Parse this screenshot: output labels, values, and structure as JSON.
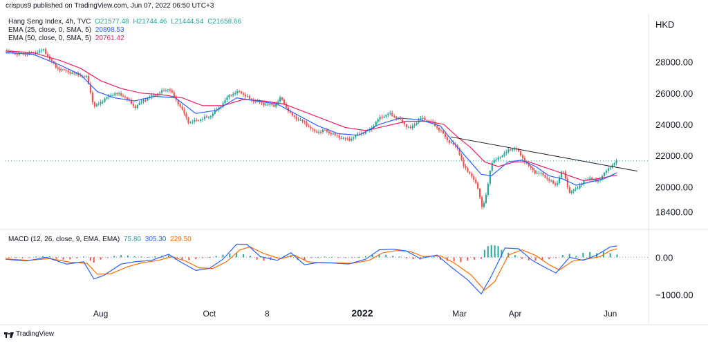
{
  "header": {
    "text": "crispus9 published on TradingView.com, Jun 07, 2022 06:50 UTC+3"
  },
  "currency": "HKD",
  "watermark_text": "TradingView",
  "legend": {
    "main": {
      "label": "Hang Seng Index, 4h, TVC",
      "o": "O21577.48",
      "h": "H21744.46",
      "l": "L21444.54",
      "c": "C21658.66",
      "color": "#26a69a"
    },
    "ema25": {
      "label": "EMA (25, close, 0, SMA, 5)",
      "value": "20898.53",
      "color": "#2962ff"
    },
    "ema50": {
      "label": "EMA (50, close, 0, SMA, 5)",
      "value": "20761.42",
      "color": "#e91e63"
    },
    "macd": {
      "label": "MACD (12, 26, close, 9, EMA, EMA)",
      "hist": "75.80",
      "macd": "305.30",
      "signal": "229.50",
      "hist_color": "#26a69a",
      "macd_color": "#2962ff",
      "signal_color": "#ff6d00"
    }
  },
  "chart_data": [
    {
      "type": "candlestick",
      "title": "Hang Seng Index, 4h, TVC",
      "x_tick_labels": [
        "Aug",
        "Oct",
        "8",
        "2022",
        "Mar",
        "Apr",
        "Jun"
      ],
      "y_tick_labels": [
        "28000.00",
        "26000.00",
        "24000.00",
        "22000.00",
        "20000.00",
        "18400.00"
      ],
      "ylim": [
        17800,
        30200
      ],
      "last_price_line": 21658.66,
      "colors": {
        "up": "#26a69a",
        "down": "#ef5350",
        "ema25": "#2962ff",
        "ema50": "#e91e63",
        "trendline": "#131722"
      },
      "close_path": [
        [
          0,
          28700
        ],
        [
          20,
          28500
        ],
        [
          40,
          28550
        ],
        [
          55,
          28800
        ],
        [
          75,
          27600
        ],
        [
          90,
          27400
        ],
        [
          105,
          27200
        ],
        [
          120,
          27000
        ],
        [
          130,
          25100
        ],
        [
          145,
          25600
        ],
        [
          160,
          26000
        ],
        [
          175,
          25800
        ],
        [
          190,
          25100
        ],
        [
          205,
          25600
        ],
        [
          220,
          25900
        ],
        [
          240,
          26300
        ],
        [
          255,
          25300
        ],
        [
          270,
          24100
        ],
        [
          285,
          24300
        ],
        [
          300,
          24500
        ],
        [
          315,
          25100
        ],
        [
          330,
          25900
        ],
        [
          345,
          26100
        ],
        [
          360,
          25600
        ],
        [
          380,
          25300
        ],
        [
          395,
          25200
        ],
        [
          405,
          25700
        ],
        [
          420,
          24600
        ],
        [
          440,
          24100
        ],
        [
          455,
          23500
        ],
        [
          470,
          23600
        ],
        [
          490,
          23200
        ],
        [
          505,
          23000
        ],
        [
          520,
          23400
        ],
        [
          535,
          23600
        ],
        [
          550,
          24400
        ],
        [
          565,
          24700
        ],
        [
          580,
          24300
        ],
        [
          595,
          23700
        ],
        [
          610,
          24400
        ],
        [
          625,
          24200
        ],
        [
          640,
          23600
        ],
        [
          650,
          23000
        ],
        [
          665,
          22500
        ],
        [
          675,
          21200
        ],
        [
          685,
          20800
        ],
        [
          695,
          19900
        ],
        [
          702,
          18600
        ],
        [
          708,
          19600
        ],
        [
          715,
          21600
        ],
        [
          725,
          21800
        ],
        [
          735,
          22200
        ],
        [
          750,
          22500
        ],
        [
          760,
          21900
        ],
        [
          770,
          21300
        ],
        [
          780,
          20900
        ],
        [
          790,
          20800
        ],
        [
          800,
          20400
        ],
        [
          810,
          20100
        ],
        [
          820,
          21100
        ],
        [
          830,
          19600
        ],
        [
          840,
          19900
        ],
        [
          850,
          20300
        ],
        [
          860,
          20600
        ],
        [
          870,
          20300
        ],
        [
          880,
          20800
        ],
        [
          890,
          21300
        ],
        [
          900,
          21660
        ]
      ],
      "ema25_path": [
        [
          0,
          28600
        ],
        [
          40,
          28500
        ],
        [
          80,
          27800
        ],
        [
          110,
          27200
        ],
        [
          135,
          26100
        ],
        [
          160,
          25700
        ],
        [
          190,
          25500
        ],
        [
          220,
          25800
        ],
        [
          250,
          25700
        ],
        [
          280,
          24700
        ],
        [
          310,
          24900
        ],
        [
          340,
          25700
        ],
        [
          370,
          25500
        ],
        [
          400,
          25300
        ],
        [
          430,
          24600
        ],
        [
          460,
          23900
        ],
        [
          490,
          23400
        ],
        [
          520,
          23300
        ],
        [
          550,
          24000
        ],
        [
          580,
          24400
        ],
        [
          610,
          24300
        ],
        [
          640,
          23900
        ],
        [
          660,
          22800
        ],
        [
          680,
          21800
        ],
        [
          700,
          20800
        ],
        [
          715,
          20700
        ],
        [
          740,
          21600
        ],
        [
          760,
          21700
        ],
        [
          780,
          21300
        ],
        [
          800,
          20700
        ],
        [
          820,
          20500
        ],
        [
          840,
          20100
        ],
        [
          860,
          20300
        ],
        [
          880,
          20500
        ],
        [
          900,
          20900
        ]
      ],
      "ema50_path": [
        [
          0,
          28700
        ],
        [
          40,
          28600
        ],
        [
          80,
          28100
        ],
        [
          110,
          27600
        ],
        [
          140,
          26800
        ],
        [
          170,
          26300
        ],
        [
          200,
          26000
        ],
        [
          230,
          25900
        ],
        [
          260,
          25700
        ],
        [
          290,
          25200
        ],
        [
          320,
          25200
        ],
        [
          350,
          25600
        ],
        [
          380,
          25500
        ],
        [
          410,
          25300
        ],
        [
          440,
          24800
        ],
        [
          470,
          24300
        ],
        [
          500,
          23800
        ],
        [
          530,
          23600
        ],
        [
          560,
          23900
        ],
        [
          590,
          24200
        ],
        [
          620,
          24200
        ],
        [
          645,
          24000
        ],
        [
          665,
          23200
        ],
        [
          685,
          22500
        ],
        [
          705,
          21600
        ],
        [
          725,
          21300
        ],
        [
          750,
          21600
        ],
        [
          770,
          21600
        ],
        [
          790,
          21300
        ],
        [
          810,
          21000
        ],
        [
          830,
          20700
        ],
        [
          850,
          20400
        ],
        [
          870,
          20500
        ],
        [
          900,
          20760
        ]
      ],
      "trendline": [
        [
          655,
          23200
        ],
        [
          930,
          21000
        ]
      ]
    },
    {
      "type": "line",
      "title": "MACD (12, 26, close, 9, EMA, EMA)",
      "y_tick_labels": [
        "0.00",
        "−1000.00"
      ],
      "ylim": [
        -1250,
        600
      ],
      "macd_path": [
        [
          0,
          -50
        ],
        [
          30,
          -100
        ],
        [
          60,
          0
        ],
        [
          90,
          -180
        ],
        [
          115,
          -120
        ],
        [
          130,
          -580
        ],
        [
          145,
          -480
        ],
        [
          170,
          -180
        ],
        [
          190,
          -120
        ],
        [
          215,
          -80
        ],
        [
          240,
          80
        ],
        [
          260,
          -150
        ],
        [
          280,
          -350
        ],
        [
          300,
          -300
        ],
        [
          320,
          -50
        ],
        [
          340,
          350
        ],
        [
          355,
          350
        ],
        [
          375,
          20
        ],
        [
          400,
          -80
        ],
        [
          420,
          120
        ],
        [
          440,
          -200
        ],
        [
          460,
          -140
        ],
        [
          480,
          -150
        ],
        [
          505,
          -180
        ],
        [
          530,
          -50
        ],
        [
          550,
          200
        ],
        [
          570,
          220
        ],
        [
          590,
          170
        ],
        [
          610,
          -30
        ],
        [
          635,
          60
        ],
        [
          655,
          -250
        ],
        [
          680,
          -600
        ],
        [
          700,
          -980
        ],
        [
          715,
          -500
        ],
        [
          735,
          250
        ],
        [
          755,
          230
        ],
        [
          775,
          -80
        ],
        [
          795,
          -280
        ],
        [
          810,
          -420
        ],
        [
          830,
          0
        ],
        [
          850,
          -80
        ],
        [
          870,
          60
        ],
        [
          890,
          280
        ],
        [
          900,
          305
        ]
      ],
      "signal_path": [
        [
          0,
          -40
        ],
        [
          35,
          -80
        ],
        [
          65,
          -30
        ],
        [
          95,
          -130
        ],
        [
          120,
          -160
        ],
        [
          135,
          -450
        ],
        [
          155,
          -440
        ],
        [
          180,
          -250
        ],
        [
          200,
          -150
        ],
        [
          225,
          -80
        ],
        [
          245,
          20
        ],
        [
          265,
          -100
        ],
        [
          285,
          -280
        ],
        [
          305,
          -300
        ],
        [
          325,
          -120
        ],
        [
          345,
          200
        ],
        [
          360,
          280
        ],
        [
          380,
          100
        ],
        [
          405,
          -40
        ],
        [
          425,
          60
        ],
        [
          445,
          -120
        ],
        [
          465,
          -150
        ],
        [
          485,
          -150
        ],
        [
          510,
          -160
        ],
        [
          535,
          -80
        ],
        [
          555,
          120
        ],
        [
          575,
          180
        ],
        [
          595,
          160
        ],
        [
          615,
          20
        ],
        [
          640,
          40
        ],
        [
          660,
          -150
        ],
        [
          685,
          -470
        ],
        [
          705,
          -880
        ],
        [
          720,
          -650
        ],
        [
          740,
          60
        ],
        [
          760,
          200
        ],
        [
          780,
          50
        ],
        [
          800,
          -200
        ],
        [
          815,
          -340
        ],
        [
          835,
          -100
        ],
        [
          855,
          -50
        ],
        [
          875,
          20
        ],
        [
          890,
          180
        ],
        [
          900,
          230
        ]
      ],
      "histogram": [
        [
          5,
          -10
        ],
        [
          15,
          -20
        ],
        [
          25,
          -25
        ],
        [
          35,
          -15
        ],
        [
          45,
          20
        ],
        [
          55,
          30
        ],
        [
          65,
          25
        ],
        [
          75,
          -40
        ],
        [
          85,
          -60
        ],
        [
          95,
          -55
        ],
        [
          105,
          -30
        ],
        [
          115,
          20
        ],
        [
          125,
          -90
        ],
        [
          130,
          -140
        ],
        [
          140,
          -60
        ],
        [
          150,
          -20
        ],
        [
          160,
          40
        ],
        [
          170,
          60
        ],
        [
          180,
          50
        ],
        [
          190,
          30
        ],
        [
          200,
          20
        ],
        [
          210,
          10
        ],
        [
          220,
          25
        ],
        [
          230,
          40
        ],
        [
          240,
          55
        ],
        [
          250,
          -60
        ],
        [
          260,
          -80
        ],
        [
          270,
          -70
        ],
        [
          280,
          -50
        ],
        [
          290,
          -20
        ],
        [
          300,
          10
        ],
        [
          310,
          40
        ],
        [
          320,
          70
        ],
        [
          330,
          100
        ],
        [
          340,
          120
        ],
        [
          350,
          80
        ],
        [
          360,
          40
        ],
        [
          370,
          -60
        ],
        [
          380,
          -90
        ],
        [
          390,
          -70
        ],
        [
          400,
          -30
        ],
        [
          410,
          40
        ],
        [
          420,
          60
        ],
        [
          430,
          -70
        ],
        [
          440,
          -80
        ],
        [
          450,
          -20
        ],
        [
          460,
          10
        ],
        [
          470,
          20
        ],
        [
          480,
          10
        ],
        [
          490,
          -10
        ],
        [
          500,
          -15
        ],
        [
          510,
          -20
        ],
        [
          520,
          10
        ],
        [
          530,
          30
        ],
        [
          540,
          60
        ],
        [
          550,
          80
        ],
        [
          560,
          70
        ],
        [
          570,
          40
        ],
        [
          580,
          20
        ],
        [
          590,
          -30
        ],
        [
          600,
          -50
        ],
        [
          610,
          -60
        ],
        [
          620,
          20
        ],
        [
          630,
          30
        ],
        [
          640,
          -60
        ],
        [
          650,
          -90
        ],
        [
          660,
          -110
        ],
        [
          670,
          -130
        ],
        [
          680,
          -90
        ],
        [
          690,
          -60
        ],
        [
          700,
          -40
        ],
        [
          705,
          200
        ],
        [
          710,
          300
        ],
        [
          715,
          330
        ],
        [
          720,
          320
        ],
        [
          725,
          300
        ],
        [
          730,
          200
        ],
        [
          740,
          120
        ],
        [
          750,
          60
        ],
        [
          760,
          -40
        ],
        [
          770,
          -80
        ],
        [
          780,
          -90
        ],
        [
          790,
          -70
        ],
        [
          800,
          -50
        ],
        [
          810,
          -20
        ],
        [
          820,
          60
        ],
        [
          830,
          90
        ],
        [
          840,
          40
        ],
        [
          850,
          120
        ],
        [
          860,
          140
        ],
        [
          870,
          110
        ],
        [
          880,
          150
        ],
        [
          890,
          110
        ],
        [
          900,
          76
        ]
      ]
    }
  ]
}
